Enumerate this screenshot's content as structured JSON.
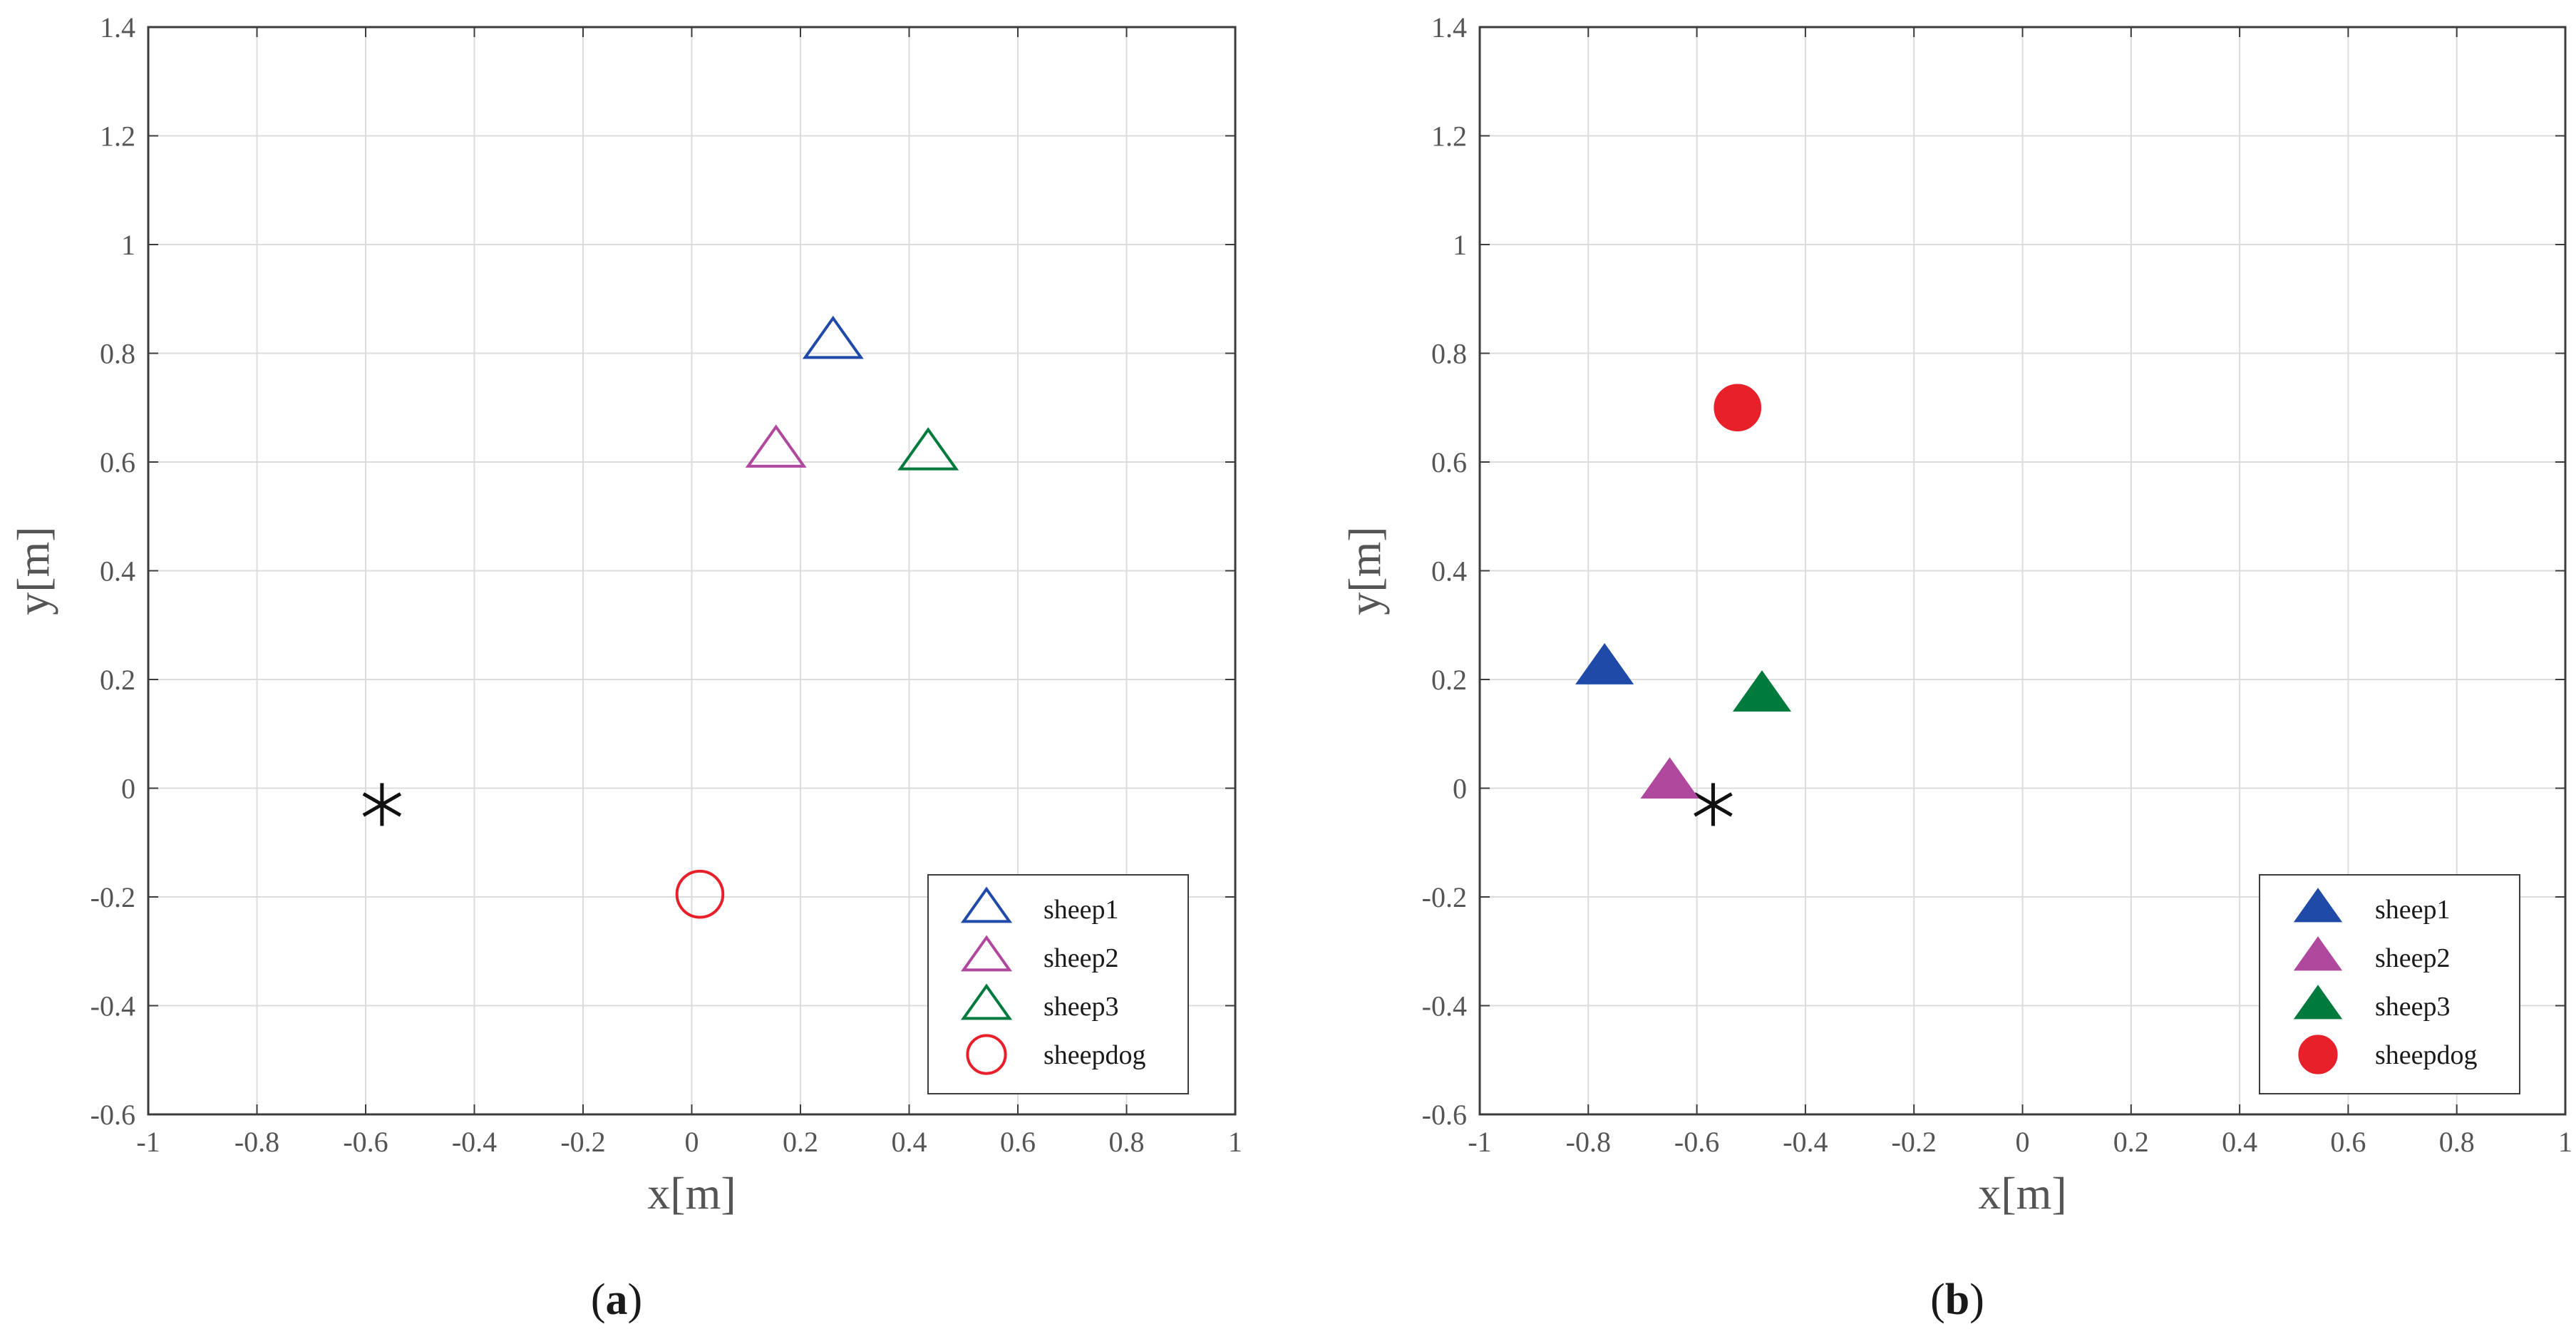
{
  "chart_data": [
    {
      "type": "scatter",
      "panel_label": "a",
      "xlabel": "x[m]",
      "ylabel": "y[m]",
      "xlim": [
        -1,
        1
      ],
      "ylim": [
        -0.6,
        1.4
      ],
      "xticks": [
        -1,
        -0.8,
        -0.6,
        -0.4,
        -0.2,
        0,
        0.2,
        0.4,
        0.6,
        0.8,
        1
      ],
      "xtick_labels": [
        "-1",
        "-0.8",
        "-0.6",
        "-0.4",
        "-0.2",
        "0",
        "0.2",
        "0.4",
        "0.6",
        "0.8",
        "1"
      ],
      "yticks": [
        -0.6,
        -0.4,
        -0.2,
        0,
        0.2,
        0.4,
        0.6,
        0.8,
        1,
        1.2,
        1.4
      ],
      "ytick_labels": [
        "-0.6",
        "-0.4",
        "-0.2",
        "0",
        "0.2",
        "0.4",
        "0.6",
        "0.8",
        "1",
        "1.2",
        "1.4"
      ],
      "grid": true,
      "legend_position": "bottom-right",
      "series": [
        {
          "name": "sheep1",
          "marker": "triangle",
          "filled": false,
          "color": "#1f4aa8",
          "x": [
            0.26
          ],
          "y": [
            0.82
          ]
        },
        {
          "name": "sheep2",
          "marker": "triangle",
          "filled": false,
          "color": "#b0489e",
          "x": [
            0.155
          ],
          "y": [
            0.62
          ]
        },
        {
          "name": "sheep3",
          "marker": "triangle",
          "filled": false,
          "color": "#007a3d",
          "x": [
            0.435
          ],
          "y": [
            0.615
          ]
        },
        {
          "name": "sheepdog",
          "marker": "circle",
          "filled": false,
          "color": "#e8202a",
          "x": [
            0.015
          ],
          "y": [
            -0.195
          ]
        }
      ],
      "annotations": [
        {
          "marker": "asterisk",
          "color": "#111111",
          "x": -0.57,
          "y": -0.03
        }
      ]
    },
    {
      "type": "scatter",
      "panel_label": "b",
      "xlabel": "x[m]",
      "ylabel": "y[m]",
      "xlim": [
        -1,
        1
      ],
      "ylim": [
        -0.6,
        1.4
      ],
      "xticks": [
        -1,
        -0.8,
        -0.6,
        -0.4,
        -0.2,
        0,
        0.2,
        0.4,
        0.6,
        0.8,
        1
      ],
      "xtick_labels": [
        "-1",
        "-0.8",
        "-0.6",
        "-0.4",
        "-0.2",
        "0",
        "0.2",
        "0.4",
        "0.6",
        "0.8",
        "1"
      ],
      "yticks": [
        -0.6,
        -0.4,
        -0.2,
        0,
        0.2,
        0.4,
        0.6,
        0.8,
        1,
        1.2,
        1.4
      ],
      "ytick_labels": [
        "-0.6",
        "-0.4",
        "-0.2",
        "0",
        "0.2",
        "0.4",
        "0.6",
        "0.8",
        "1",
        "1.2",
        "1.4"
      ],
      "grid": true,
      "legend_position": "bottom-right",
      "series": [
        {
          "name": "sheep1",
          "marker": "triangle",
          "filled": true,
          "color": "#1f4aa8",
          "x": [
            -0.77
          ],
          "y": [
            0.22
          ]
        },
        {
          "name": "sheep2",
          "marker": "triangle",
          "filled": true,
          "color": "#b0489e",
          "x": [
            -0.65
          ],
          "y": [
            0.01
          ]
        },
        {
          "name": "sheep3",
          "marker": "triangle",
          "filled": true,
          "color": "#007a3d",
          "x": [
            -0.48
          ],
          "y": [
            0.17
          ]
        },
        {
          "name": "sheepdog",
          "marker": "circle",
          "filled": true,
          "color": "#e8202a",
          "x": [
            -0.525
          ],
          "y": [
            0.7
          ]
        }
      ],
      "annotations": [
        {
          "marker": "asterisk",
          "color": "#111111",
          "x": -0.57,
          "y": -0.03
        }
      ]
    }
  ]
}
